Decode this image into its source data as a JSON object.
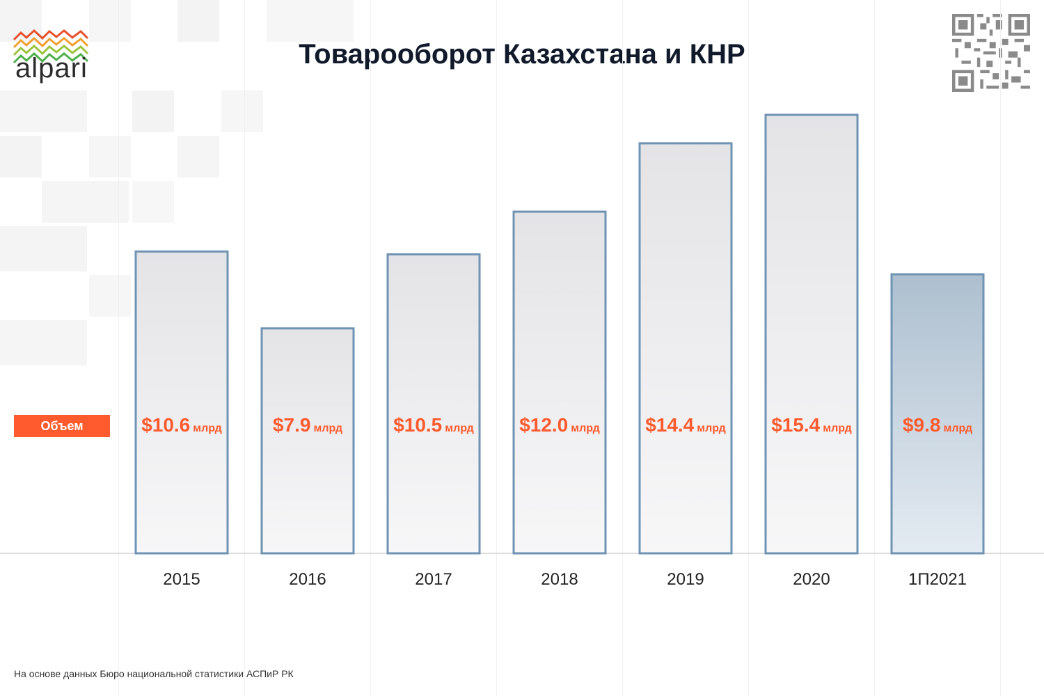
{
  "brand": {
    "logo_text": "alpari",
    "logo_colors": [
      "#e8502a",
      "#f0a030",
      "#9ac43c",
      "#4db04a"
    ]
  },
  "title": "Товарооборот Казахстана и КНР",
  "badge_label": "Объем",
  "footnote": "На основе данных Бюро национальной статистики АСПиР РК",
  "unit_label": "млрд",
  "colors": {
    "bar_border": "#6f93b3",
    "bar_fill": "#ececee",
    "bar_highlight_fill": "#b4c6d6",
    "value_text": "#ff5b2e",
    "badge": "#ff5b2e"
  },
  "chart_data": {
    "type": "bar",
    "title": "Товарооборот Казахстана и КНР",
    "categories": [
      "2015",
      "2016",
      "2017",
      "2018",
      "2019",
      "2020",
      "1П2021"
    ],
    "values": [
      10.6,
      7.9,
      10.5,
      12.0,
      14.4,
      15.4,
      9.8
    ],
    "value_labels": [
      "$10.6",
      "$7.9",
      "$10.5",
      "$12.0",
      "$14.4",
      "$15.4",
      "$9.8"
    ],
    "unit": "млрд",
    "ylim": [
      0,
      15.4
    ],
    "highlighted_category": "1П2021",
    "grid": false,
    "legend": "none"
  }
}
